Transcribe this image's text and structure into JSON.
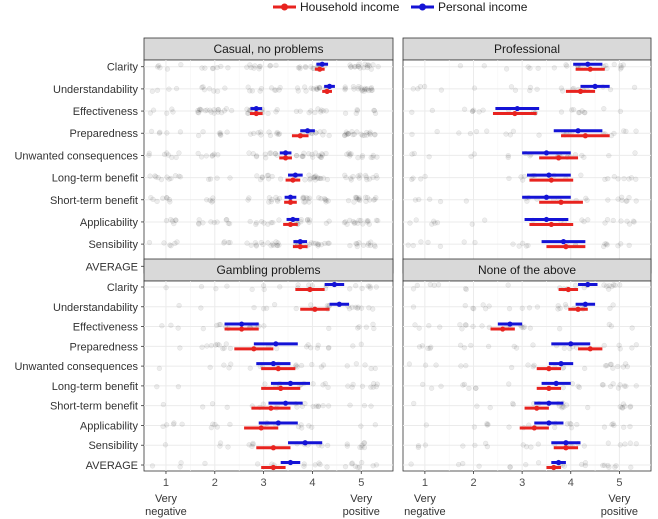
{
  "chart_data": {
    "type": "dot-interval",
    "legend": [
      {
        "key": "household",
        "label": "Household income",
        "color": "#e8231f"
      },
      {
        "key": "personal",
        "label": "Personal income",
        "color": "#1413d6"
      }
    ],
    "categories": [
      "Clarity",
      "Understandability",
      "Effectiveness",
      "Preparedness",
      "Unwanted consequences",
      "Long-term benefit",
      "Short-term benefit",
      "Applicability",
      "Sensibility",
      "AVERAGE"
    ],
    "x_ticks": [
      "1",
      "2",
      "3",
      "4",
      "5"
    ],
    "x_range": [
      0.55,
      5.65
    ],
    "x_end_labels": {
      "left": [
        "Very",
        "negative"
      ],
      "right": [
        "Very",
        "positive"
      ]
    },
    "panels": [
      {
        "title": "Casual, no problems",
        "household": [
          [
            4.15,
            4.05,
            4.25
          ],
          [
            4.3,
            4.2,
            4.4
          ],
          [
            2.85,
            2.72,
            2.98
          ],
          [
            3.75,
            3.58,
            3.92
          ],
          [
            3.45,
            3.32,
            3.58
          ],
          [
            3.6,
            3.45,
            3.75
          ],
          [
            3.55,
            3.42,
            3.68
          ],
          [
            3.55,
            3.4,
            3.7
          ],
          [
            3.75,
            3.6,
            3.9
          ],
          [
            3.65,
            3.55,
            3.75
          ]
        ],
        "personal": [
          [
            4.2,
            4.08,
            4.32
          ],
          [
            4.35,
            4.24,
            4.46
          ],
          [
            2.85,
            2.73,
            2.97
          ],
          [
            3.9,
            3.75,
            4.05
          ],
          [
            3.45,
            3.33,
            3.57
          ],
          [
            3.65,
            3.5,
            3.8
          ],
          [
            3.55,
            3.43,
            3.67
          ],
          [
            3.6,
            3.47,
            3.73
          ],
          [
            3.75,
            3.61,
            3.89
          ],
          [
            3.7,
            3.6,
            3.8
          ]
        ]
      },
      {
        "title": "Professional",
        "household": [
          [
            4.4,
            4.1,
            4.7
          ],
          [
            4.2,
            3.9,
            4.5
          ],
          [
            2.85,
            2.4,
            3.3
          ],
          [
            4.3,
            3.8,
            4.8
          ],
          [
            3.75,
            3.35,
            4.15
          ],
          [
            3.6,
            3.15,
            4.05
          ],
          [
            3.8,
            3.35,
            4.25
          ],
          [
            3.6,
            3.15,
            4.05
          ],
          [
            3.9,
            3.5,
            4.3
          ],
          [
            3.85,
            3.55,
            4.15
          ]
        ],
        "personal": [
          [
            4.35,
            4.05,
            4.65
          ],
          [
            4.5,
            4.2,
            4.8
          ],
          [
            2.9,
            2.45,
            3.35
          ],
          [
            4.15,
            3.65,
            4.65
          ],
          [
            3.5,
            3.0,
            4.0
          ],
          [
            3.55,
            3.1,
            4.0
          ],
          [
            3.5,
            3.0,
            4.0
          ],
          [
            3.5,
            3.05,
            3.95
          ],
          [
            3.85,
            3.4,
            4.3
          ],
          [
            3.75,
            3.45,
            4.05
          ]
        ]
      },
      {
        "title": "Gambling problems",
        "household": [
          [
            3.95,
            3.65,
            4.25
          ],
          [
            4.05,
            3.75,
            4.35
          ],
          [
            2.55,
            2.2,
            2.9
          ],
          [
            2.8,
            2.4,
            3.2
          ],
          [
            3.3,
            2.95,
            3.65
          ],
          [
            3.35,
            2.95,
            3.75
          ],
          [
            3.15,
            2.75,
            3.55
          ],
          [
            2.95,
            2.6,
            3.3
          ],
          [
            3.2,
            2.85,
            3.55
          ],
          [
            3.2,
            2.95,
            3.45
          ]
        ],
        "personal": [
          [
            4.45,
            4.25,
            4.65
          ],
          [
            4.55,
            4.35,
            4.75
          ],
          [
            2.55,
            2.2,
            2.9
          ],
          [
            3.25,
            2.8,
            3.7
          ],
          [
            3.2,
            2.85,
            3.55
          ],
          [
            3.55,
            3.15,
            3.95
          ],
          [
            3.45,
            3.1,
            3.8
          ],
          [
            3.3,
            2.9,
            3.7
          ],
          [
            3.85,
            3.5,
            4.2
          ],
          [
            3.55,
            3.35,
            3.75
          ]
        ]
      },
      {
        "title": "None of the above",
        "household": [
          [
            3.95,
            3.75,
            4.15
          ],
          [
            4.15,
            3.95,
            4.35
          ],
          [
            2.6,
            2.35,
            2.85
          ],
          [
            4.4,
            4.15,
            4.65
          ],
          [
            3.55,
            3.3,
            3.8
          ],
          [
            3.55,
            3.3,
            3.8
          ],
          [
            3.3,
            3.05,
            3.55
          ],
          [
            3.25,
            2.95,
            3.55
          ],
          [
            3.9,
            3.65,
            4.15
          ],
          [
            3.65,
            3.5,
            3.8
          ]
        ],
        "personal": [
          [
            4.35,
            4.15,
            4.55
          ],
          [
            4.3,
            4.1,
            4.5
          ],
          [
            2.75,
            2.5,
            3.0
          ],
          [
            4.0,
            3.6,
            4.4
          ],
          [
            3.8,
            3.55,
            4.05
          ],
          [
            3.7,
            3.4,
            4.0
          ],
          [
            3.55,
            3.25,
            3.85
          ],
          [
            3.55,
            3.25,
            3.85
          ],
          [
            3.9,
            3.6,
            4.2
          ],
          [
            3.75,
            3.6,
            3.9
          ]
        ]
      }
    ]
  }
}
